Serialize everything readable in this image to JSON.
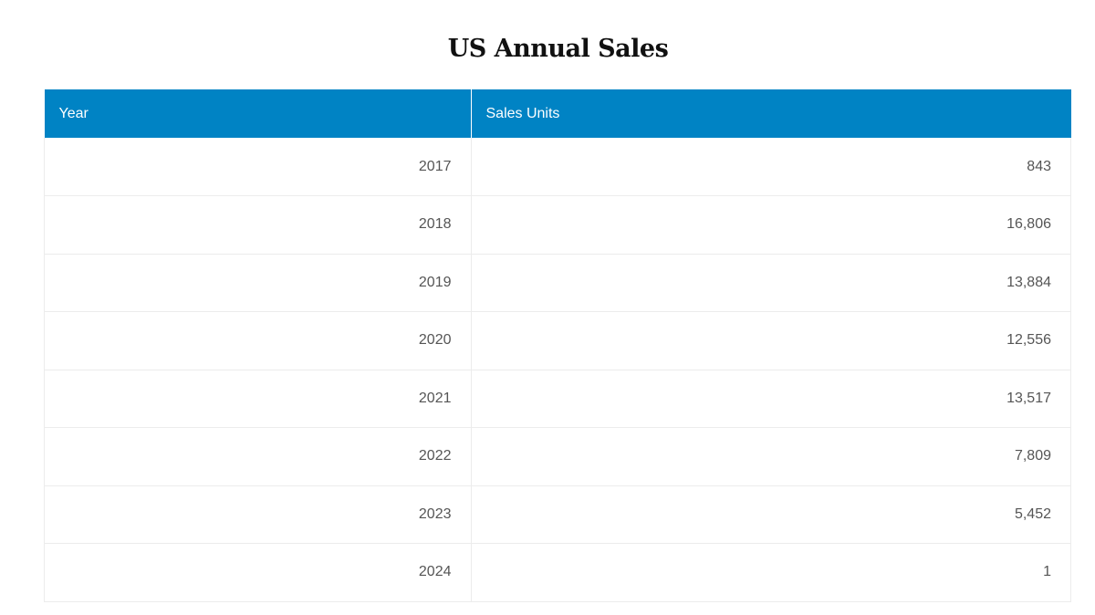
{
  "page": {
    "title": "US Annual Sales"
  },
  "table": {
    "headers": [
      "Year",
      "Sales Units"
    ],
    "rows": [
      [
        "2017",
        "843"
      ],
      [
        "2018",
        "16,806"
      ],
      [
        "2019",
        "13,884"
      ],
      [
        "2020",
        "12,556"
      ],
      [
        "2021",
        "13,517"
      ],
      [
        "2022",
        "7,809"
      ],
      [
        "2023",
        "5,452"
      ],
      [
        "2024",
        "1"
      ]
    ]
  },
  "colors": {
    "header_background": "#0083c4",
    "header_text": "#ffffff",
    "cell_text": "#555555",
    "title_text": "#111111",
    "row_border": "#ececec"
  }
}
